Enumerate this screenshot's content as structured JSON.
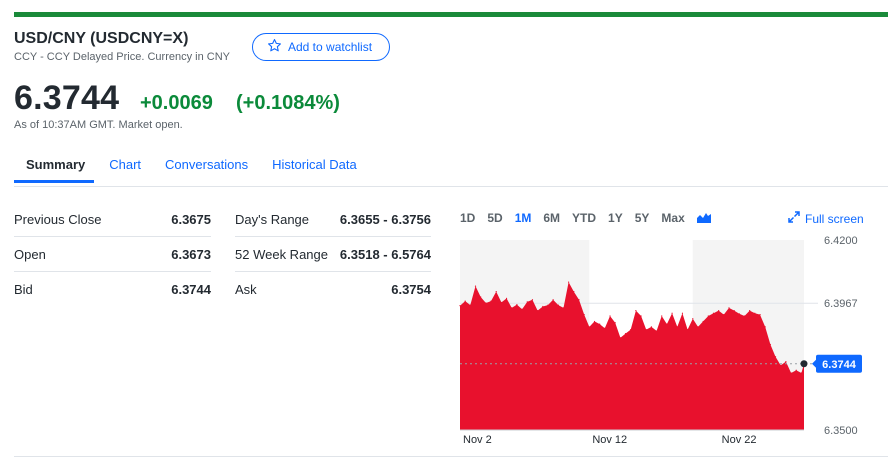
{
  "header": {
    "title": "USD/CNY (USDCNY=X)",
    "subtitle": "CCY - CCY Delayed Price. Currency in CNY",
    "watchlist_label": "Add to watchlist"
  },
  "quote": {
    "price": "6.3744",
    "change": "+0.0069",
    "change_pct": "(+0.1084%)",
    "as_of": "As of 10:37AM GMT. Market open."
  },
  "tabs": [
    {
      "label": "Summary"
    },
    {
      "label": "Chart"
    },
    {
      "label": "Conversations"
    },
    {
      "label": "Historical Data"
    }
  ],
  "stats_left": [
    {
      "label": "Previous Close",
      "value": "6.3675"
    },
    {
      "label": "Open",
      "value": "6.3673"
    },
    {
      "label": "Bid",
      "value": "6.3744"
    }
  ],
  "stats_right": [
    {
      "label": "Day's Range",
      "value": "6.3655 - 6.3756"
    },
    {
      "label": "52 Week Range",
      "value": "6.3518 - 6.5764"
    },
    {
      "label": "Ask",
      "value": "6.3754"
    }
  ],
  "chart_controls": {
    "ranges": [
      "1D",
      "5D",
      "1M",
      "6M",
      "YTD",
      "1Y",
      "5Y",
      "Max"
    ],
    "active_range": "1M",
    "fullscreen_label": "Full screen"
  },
  "colors": {
    "accent": "#0f69ff",
    "positive": "#0b8a3a",
    "chart_fill": "#e8112d",
    "shade": "#f4f4f4"
  },
  "chart_data": {
    "type": "area",
    "title": "",
    "xlabel": "",
    "ylabel": "",
    "ylim": [
      6.35,
      6.42
    ],
    "y_ticks": [
      "6.4200",
      "6.3967",
      "6.3500"
    ],
    "x_ticks": [
      {
        "label": "Nov 2",
        "x": 0
      },
      {
        "label": "Nov 12",
        "x": 10
      },
      {
        "label": "Nov 22",
        "x": 20
      }
    ],
    "shaded_bands": [
      [
        0,
        10
      ],
      [
        18,
        26.6
      ]
    ],
    "current_value": 6.3744,
    "current_label": "6.3744",
    "x": [
      0,
      0.4,
      0.8,
      1.2,
      1.6,
      2.0,
      2.4,
      2.8,
      3.2,
      3.6,
      4.0,
      4.4,
      4.8,
      5.2,
      5.6,
      6.0,
      6.4,
      6.8,
      7.2,
      7.6,
      8.0,
      8.4,
      8.8,
      9.2,
      9.6,
      10.0,
      10.4,
      10.8,
      11.2,
      11.6,
      12.0,
      12.4,
      12.8,
      13.2,
      13.6,
      14.0,
      14.4,
      14.8,
      15.2,
      15.6,
      16.0,
      16.4,
      16.8,
      17.2,
      17.6,
      18.0,
      18.4,
      18.8,
      19.2,
      19.6,
      20.0,
      20.4,
      20.8,
      21.2,
      21.6,
      22.0,
      22.4,
      22.8,
      23.2,
      23.6,
      24.0,
      24.4,
      24.8,
      25.2,
      25.6,
      26.0,
      26.4,
      26.6
    ],
    "values": [
      6.3958,
      6.3975,
      6.396,
      6.403,
      6.399,
      6.3968,
      6.3975,
      6.401,
      6.397,
      6.3985,
      6.395,
      6.3962,
      6.3945,
      6.3972,
      6.398,
      6.394,
      6.3955,
      6.396,
      6.398,
      6.396,
      6.395,
      6.4045,
      6.401,
      6.398,
      6.3925,
      6.388,
      6.39,
      6.389,
      6.3875,
      6.392,
      6.3895,
      6.384,
      6.3855,
      6.387,
      6.394,
      6.392,
      6.387,
      6.388,
      6.3865,
      6.392,
      6.389,
      6.393,
      6.388,
      6.393,
      6.387,
      6.391,
      6.388,
      6.39,
      6.392,
      6.393,
      6.394,
      6.3925,
      6.395,
      6.394,
      6.3928,
      6.392,
      6.394,
      6.393,
      6.3925,
      6.388,
      6.3815,
      6.377,
      6.3738,
      6.3752,
      6.371,
      6.372,
      6.371,
      6.3744
    ]
  }
}
